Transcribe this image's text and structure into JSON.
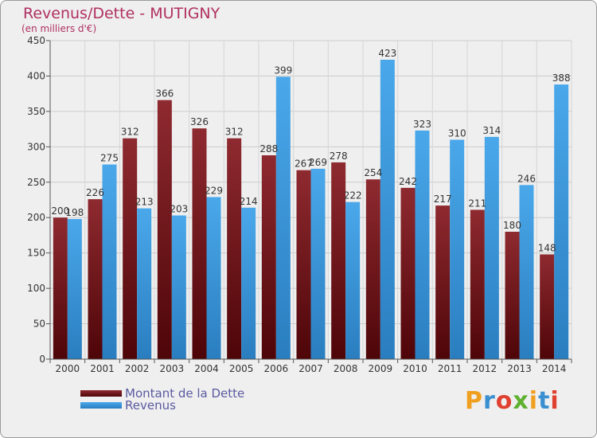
{
  "chart_data": {
    "type": "bar",
    "title": "Revenus/Dette - MUTIGNY",
    "subtitle": "(en milliers d'€)",
    "categories": [
      "2000",
      "2001",
      "2002",
      "2003",
      "2004",
      "2005",
      "2006",
      "2007",
      "2008",
      "2009",
      "2010",
      "2011",
      "2012",
      "2013",
      "2014"
    ],
    "series": [
      {
        "name": "Montant de la Dette",
        "color": "#7a1a22",
        "values": [
          200,
          226,
          312,
          366,
          326,
          312,
          288,
          267,
          278,
          254,
          242,
          217,
          211,
          180,
          148
        ]
      },
      {
        "name": "Revenus",
        "color": "#3d9de0",
        "values": [
          198,
          275,
          213,
          203,
          229,
          214,
          399,
          269,
          222,
          423,
          323,
          310,
          314,
          246,
          388
        ]
      }
    ],
    "ylim": [
      0,
      450
    ],
    "yticks": [
      0,
      50,
      100,
      150,
      200,
      250,
      300,
      350,
      400,
      450
    ],
    "grid": true,
    "legend": "bottom-left"
  },
  "logo": {
    "letters": [
      "P",
      "r",
      "o",
      "x",
      "i",
      "t",
      "i"
    ],
    "colors": [
      "#f0a020",
      "#3a8fd0",
      "#e04030",
      "#60b030",
      "#f0a020",
      "#3a8fd0",
      "#e04030"
    ]
  }
}
